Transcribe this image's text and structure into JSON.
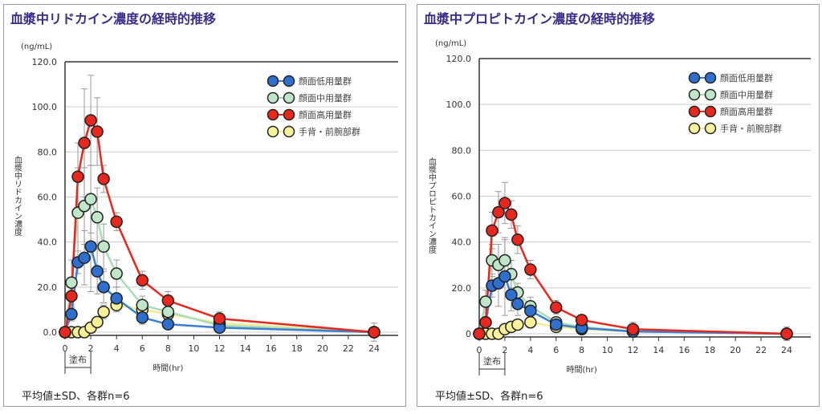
{
  "chart_data": [
    {
      "type": "line",
      "title": "血漿中リドカイン濃度の経時的推移",
      "ylabel": "血漿中リドカイン濃度",
      "yunit": "(ng/mL)",
      "xlabel": "時間(hr)",
      "ylim": [
        0,
        120
      ],
      "yticks": [
        "0.0",
        "20.0",
        "40.0",
        "60.0",
        "80.0",
        "100.0",
        "120.0"
      ],
      "xlim": [
        0,
        24
      ],
      "xticks": [
        "0",
        "2",
        "4",
        "6",
        "8",
        "10",
        "12",
        "14",
        "16",
        "18",
        "20",
        "22",
        "24"
      ],
      "grid": "horizontal",
      "legend_position": "top-right",
      "application_label": "塗布",
      "application_period": [
        0,
        2
      ],
      "footnote": "平均値±SD、各群n=6",
      "x": [
        0,
        0.5,
        1,
        1.5,
        2,
        2.5,
        3,
        4,
        6,
        8,
        12,
        24
      ],
      "series": [
        {
          "name": "顔面低用量群",
          "color": "#2f6fd0",
          "line": "#3a7fd5",
          "values": [
            0,
            8,
            31,
            33,
            38,
            27,
            20,
            15,
            6.5,
            3.5,
            2,
            0
          ],
          "sd": [
            0,
            3,
            5,
            12,
            20,
            10,
            7,
            5,
            3,
            2,
            2,
            1
          ]
        },
        {
          "name": "顔面中用量群",
          "color": "#bfe6c8",
          "line": "#a8dcb8",
          "values": [
            0,
            22,
            53,
            56,
            59,
            51,
            38,
            26,
            12,
            9,
            3,
            0
          ],
          "sd": [
            0,
            10,
            20,
            17,
            15,
            13,
            10,
            6,
            4,
            3,
            2,
            1
          ]
        },
        {
          "name": "顔面高用量群",
          "color": "#e8281e",
          "line": "#e8281e",
          "values": [
            0,
            16,
            69,
            84,
            94,
            89,
            68,
            49,
            23,
            14,
            6,
            0
          ],
          "sd": [
            0,
            5,
            15,
            24,
            20,
            15,
            6,
            4,
            4,
            4,
            3,
            4
          ]
        },
        {
          "name": "手背・前腕部群",
          "color": "#f7f29a",
          "line": "#f2ec90",
          "values": [
            0,
            0,
            0,
            0,
            2,
            4.5,
            9,
            12,
            10,
            8,
            4,
            0
          ],
          "sd": [
            0,
            0,
            0,
            1,
            2,
            2,
            3,
            3,
            3,
            3,
            2,
            2
          ]
        }
      ]
    },
    {
      "type": "line",
      "title": "血漿中プロピトカイン濃度の経時的推移",
      "ylabel": "血漿中プロピトカイン濃度",
      "yunit": "(ng/mL)",
      "xlabel": "時間(hr)",
      "ylim": [
        0,
        120
      ],
      "yticks": [
        "0",
        "20.0",
        "40.0",
        "60.0",
        "80.0",
        "100.0",
        "120.0"
      ],
      "xlim": [
        0,
        24
      ],
      "xticks": [
        "0",
        "2",
        "4",
        "6",
        "8",
        "10",
        "12",
        "14",
        "16",
        "18",
        "20",
        "22",
        "24"
      ],
      "grid": "horizontal",
      "legend_position": "top-right",
      "application_label": "塗布",
      "application_period": [
        0,
        2
      ],
      "footnote": "平均値±SD、各群n=6",
      "x": [
        0,
        0.5,
        1,
        1.5,
        2,
        2.5,
        3,
        4,
        6,
        8,
        12,
        24
      ],
      "series": [
        {
          "name": "顔面低用量群",
          "color": "#2f6fd0",
          "line": "#3a7fd5",
          "values": [
            0,
            5,
            21,
            22,
            25,
            17,
            13,
            10,
            4,
            2.5,
            1,
            0
          ],
          "sd": [
            0,
            2,
            5,
            10,
            17,
            7,
            5,
            4,
            2,
            1,
            1,
            1
          ]
        },
        {
          "name": "顔面中用量群",
          "color": "#bfe6c8",
          "line": "#a8dcb8",
          "values": [
            0,
            14,
            32,
            30,
            32,
            26,
            18,
            12,
            5,
            3,
            1,
            0
          ],
          "sd": [
            0,
            5,
            7,
            9,
            9,
            6,
            4,
            4,
            2,
            2,
            1,
            1
          ]
        },
        {
          "name": "顔面高用量群",
          "color": "#e8281e",
          "line": "#e8281e",
          "values": [
            0,
            5,
            45,
            53,
            57,
            52,
            41,
            28,
            11.5,
            6,
            2,
            0
          ],
          "sd": [
            0,
            2,
            8,
            9,
            9,
            6,
            6,
            4,
            3,
            2,
            3,
            3
          ]
        },
        {
          "name": "手背・前腕部群",
          "color": "#f7f29a",
          "line": "#f2ec90",
          "values": [
            0,
            0,
            0,
            0,
            2,
            3,
            4,
            5,
            3,
            2,
            1,
            0
          ],
          "sd": [
            0,
            0,
            0,
            1,
            1,
            1,
            1,
            1,
            1,
            1,
            1,
            1
          ]
        }
      ]
    }
  ]
}
